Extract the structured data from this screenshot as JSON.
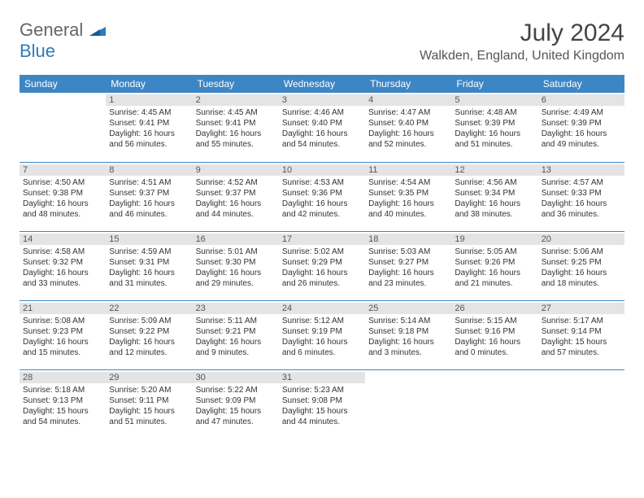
{
  "logo": {
    "general": "General",
    "blue": "Blue"
  },
  "title": "July 2024",
  "location": "Walkden, England, United Kingdom",
  "colors": {
    "header_bg": "#3d86c6",
    "header_text": "#ffffff",
    "daynum_bg": "#e4e4e4",
    "daynum_text": "#555555",
    "body_text": "#333333",
    "rule": "#3d86c6"
  },
  "weekdays": [
    "Sunday",
    "Monday",
    "Tuesday",
    "Wednesday",
    "Thursday",
    "Friday",
    "Saturday"
  ],
  "weeks": [
    [
      null,
      {
        "n": "1",
        "sr": "4:45 AM",
        "ss": "9:41 PM",
        "dl": "16 hours and 56 minutes."
      },
      {
        "n": "2",
        "sr": "4:45 AM",
        "ss": "9:41 PM",
        "dl": "16 hours and 55 minutes."
      },
      {
        "n": "3",
        "sr": "4:46 AM",
        "ss": "9:40 PM",
        "dl": "16 hours and 54 minutes."
      },
      {
        "n": "4",
        "sr": "4:47 AM",
        "ss": "9:40 PM",
        "dl": "16 hours and 52 minutes."
      },
      {
        "n": "5",
        "sr": "4:48 AM",
        "ss": "9:39 PM",
        "dl": "16 hours and 51 minutes."
      },
      {
        "n": "6",
        "sr": "4:49 AM",
        "ss": "9:39 PM",
        "dl": "16 hours and 49 minutes."
      }
    ],
    [
      {
        "n": "7",
        "sr": "4:50 AM",
        "ss": "9:38 PM",
        "dl": "16 hours and 48 minutes."
      },
      {
        "n": "8",
        "sr": "4:51 AM",
        "ss": "9:37 PM",
        "dl": "16 hours and 46 minutes."
      },
      {
        "n": "9",
        "sr": "4:52 AM",
        "ss": "9:37 PM",
        "dl": "16 hours and 44 minutes."
      },
      {
        "n": "10",
        "sr": "4:53 AM",
        "ss": "9:36 PM",
        "dl": "16 hours and 42 minutes."
      },
      {
        "n": "11",
        "sr": "4:54 AM",
        "ss": "9:35 PM",
        "dl": "16 hours and 40 minutes."
      },
      {
        "n": "12",
        "sr": "4:56 AM",
        "ss": "9:34 PM",
        "dl": "16 hours and 38 minutes."
      },
      {
        "n": "13",
        "sr": "4:57 AM",
        "ss": "9:33 PM",
        "dl": "16 hours and 36 minutes."
      }
    ],
    [
      {
        "n": "14",
        "sr": "4:58 AM",
        "ss": "9:32 PM",
        "dl": "16 hours and 33 minutes."
      },
      {
        "n": "15",
        "sr": "4:59 AM",
        "ss": "9:31 PM",
        "dl": "16 hours and 31 minutes."
      },
      {
        "n": "16",
        "sr": "5:01 AM",
        "ss": "9:30 PM",
        "dl": "16 hours and 29 minutes."
      },
      {
        "n": "17",
        "sr": "5:02 AM",
        "ss": "9:29 PM",
        "dl": "16 hours and 26 minutes."
      },
      {
        "n": "18",
        "sr": "5:03 AM",
        "ss": "9:27 PM",
        "dl": "16 hours and 23 minutes."
      },
      {
        "n": "19",
        "sr": "5:05 AM",
        "ss": "9:26 PM",
        "dl": "16 hours and 21 minutes."
      },
      {
        "n": "20",
        "sr": "5:06 AM",
        "ss": "9:25 PM",
        "dl": "16 hours and 18 minutes."
      }
    ],
    [
      {
        "n": "21",
        "sr": "5:08 AM",
        "ss": "9:23 PM",
        "dl": "16 hours and 15 minutes."
      },
      {
        "n": "22",
        "sr": "5:09 AM",
        "ss": "9:22 PM",
        "dl": "16 hours and 12 minutes."
      },
      {
        "n": "23",
        "sr": "5:11 AM",
        "ss": "9:21 PM",
        "dl": "16 hours and 9 minutes."
      },
      {
        "n": "24",
        "sr": "5:12 AM",
        "ss": "9:19 PM",
        "dl": "16 hours and 6 minutes."
      },
      {
        "n": "25",
        "sr": "5:14 AM",
        "ss": "9:18 PM",
        "dl": "16 hours and 3 minutes."
      },
      {
        "n": "26",
        "sr": "5:15 AM",
        "ss": "9:16 PM",
        "dl": "16 hours and 0 minutes."
      },
      {
        "n": "27",
        "sr": "5:17 AM",
        "ss": "9:14 PM",
        "dl": "15 hours and 57 minutes."
      }
    ],
    [
      {
        "n": "28",
        "sr": "5:18 AM",
        "ss": "9:13 PM",
        "dl": "15 hours and 54 minutes."
      },
      {
        "n": "29",
        "sr": "5:20 AM",
        "ss": "9:11 PM",
        "dl": "15 hours and 51 minutes."
      },
      {
        "n": "30",
        "sr": "5:22 AM",
        "ss": "9:09 PM",
        "dl": "15 hours and 47 minutes."
      },
      {
        "n": "31",
        "sr": "5:23 AM",
        "ss": "9:08 PM",
        "dl": "15 hours and 44 minutes."
      },
      null,
      null,
      null
    ]
  ],
  "labels": {
    "sunrise": "Sunrise: ",
    "sunset": "Sunset: ",
    "daylight": "Daylight: "
  }
}
